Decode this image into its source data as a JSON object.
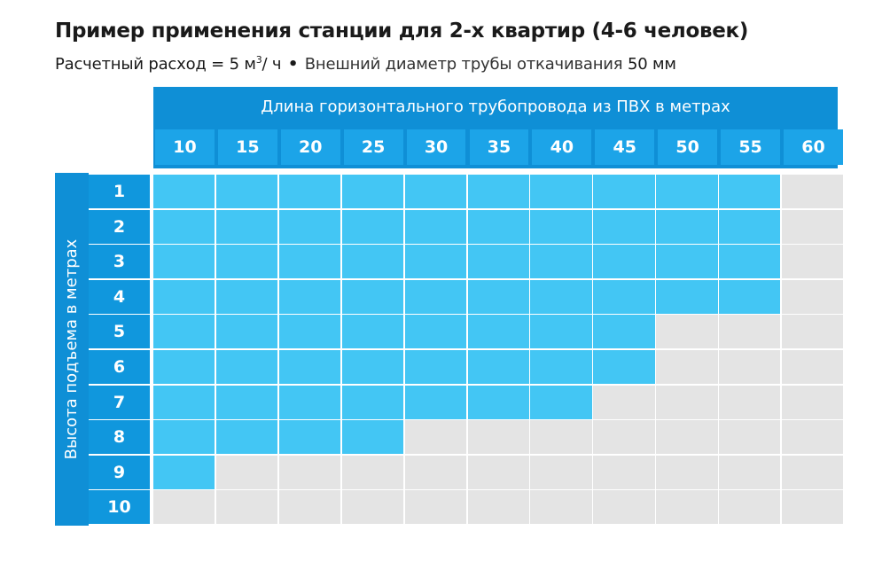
{
  "title": "Пример применения станции для 2-х квартир (4-6 человек)",
  "subtitle": {
    "flow_label": "Расчетный расход = 5 м",
    "flow_sup": "3",
    "flow_unit": "/ ч",
    "separator": "•",
    "diameter_label": "Внешний диаметр трубы откачивания",
    "diameter_value": "50 мм"
  },
  "colors": {
    "header": "#0f8fd6",
    "allowed": "#43c6f4",
    "not_allowed": "#e4e4e4",
    "row_header": "#1097dd"
  },
  "chart_data": {
    "type": "table",
    "title": "Пример применения станции для 2-х квартир (4-6 человек)",
    "xlabel": "Длина горизонтального трубопровода из ПВХ в метрах",
    "ylabel": "Высота подъема в метрах",
    "columns": [
      10,
      15,
      20,
      25,
      30,
      35,
      40,
      45,
      50,
      55,
      60
    ],
    "rows": [
      1,
      2,
      3,
      4,
      5,
      6,
      7,
      8,
      9,
      10
    ],
    "max_length_by_height": [
      {
        "height": 1,
        "max_length": 55
      },
      {
        "height": 2,
        "max_length": 55
      },
      {
        "height": 3,
        "max_length": 55
      },
      {
        "height": 4,
        "max_length": 55
      },
      {
        "height": 5,
        "max_length": 45
      },
      {
        "height": 6,
        "max_length": 45
      },
      {
        "height": 7,
        "max_length": 40
      },
      {
        "height": 8,
        "max_length": 25
      },
      {
        "height": 9,
        "max_length": 10
      },
      {
        "height": 10,
        "max_length": 0
      }
    ]
  }
}
